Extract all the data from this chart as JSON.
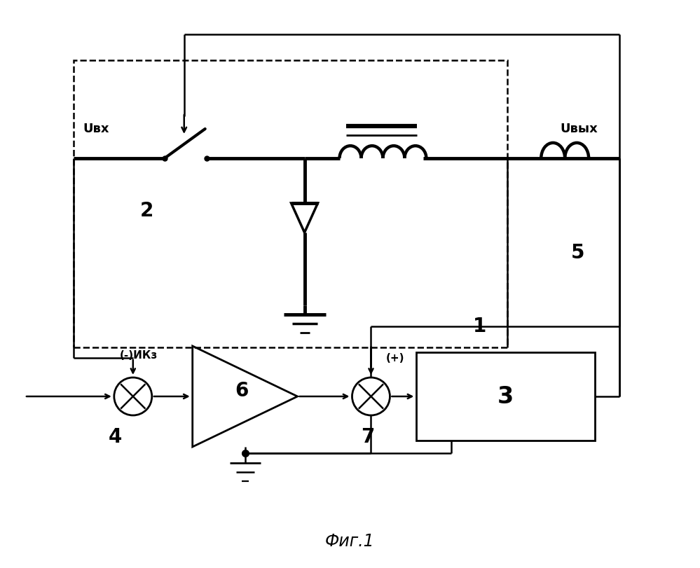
{
  "title": "Фиг.1",
  "background_color": "#ffffff",
  "line_color": "#000000",
  "fig_label_U_vx": "Uвх",
  "fig_label_U_vyx": "Uвых",
  "label_1": "1",
  "label_2": "2",
  "label_3": "3",
  "label_4": "4",
  "label_5": "5",
  "label_6": "6",
  "label_7": "7",
  "label_minus_Ikz": "(-)ИКз",
  "label_plus": "(+)"
}
